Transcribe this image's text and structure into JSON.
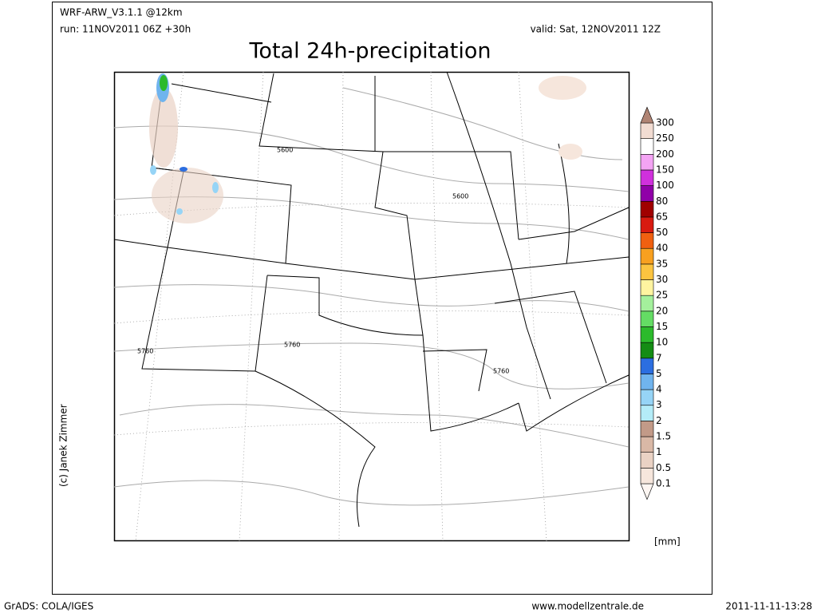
{
  "header": {
    "model": "WRF-ARW_V3.1.1 @12km",
    "run": "run: 11NOV2011 06Z +30h",
    "valid": "valid: Sat, 12NOV2011 12Z",
    "title": "Total 24h-precipitation"
  },
  "map": {
    "contour_labels": [
      "5600",
      "5600",
      "5760",
      "5760",
      "5760"
    ],
    "copyright": "(c) Janek Zimmer"
  },
  "colorbar": {
    "unit": "[mm]",
    "levels": [
      "0.1",
      "0.5",
      "1",
      "1.5",
      "2",
      "3",
      "4",
      "5",
      "7",
      "10",
      "15",
      "20",
      "25",
      "30",
      "35",
      "40",
      "50",
      "65",
      "80",
      "100",
      "150",
      "200",
      "250",
      "300"
    ],
    "colors": [
      "#fdf6f2",
      "#f6e6dc",
      "#ead2c4",
      "#d9b8a6",
      "#c29a88",
      "#b4ecf8",
      "#96d4f6",
      "#70b4ee",
      "#2c6ee0",
      "#148c14",
      "#2cba2c",
      "#64dc64",
      "#a4f09c",
      "#fff4a0",
      "#fcc440",
      "#f8a020",
      "#f06010",
      "#d81a10",
      "#a00000",
      "#9000a8",
      "#d030dc",
      "#f4a4f4",
      "#ffffff",
      "#f2dcd2",
      "#b08474"
    ]
  },
  "footer": {
    "software": "GrADS: COLA/IGES",
    "website": "www.modellzentrale.de",
    "timestamp": "2011-11-11-13:28"
  }
}
